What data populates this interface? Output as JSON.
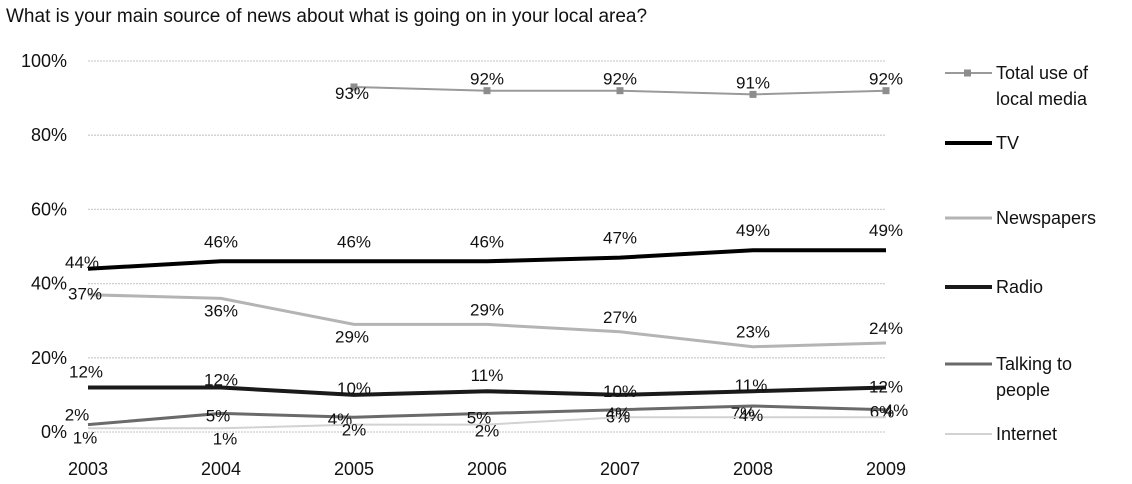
{
  "chart_data": {
    "type": "line",
    "title": "What is your main source of news about what is going on in your local area?",
    "x": [
      "2003",
      "2004",
      "2005",
      "2006",
      "2007",
      "2008",
      "2009"
    ],
    "ylim": [
      0,
      100
    ],
    "yticks": [
      "0%",
      "20%",
      "40%",
      "60%",
      "80%",
      "100%"
    ],
    "grid": true,
    "legend_position": "right",
    "series": [
      {
        "name": "Total use of local media",
        "values": [
          null,
          null,
          93,
          92,
          92,
          91,
          92
        ],
        "labels": [
          "",
          "",
          "93%",
          "92%",
          "92%",
          "91%",
          "92%"
        ],
        "color": "#9a9a9a",
        "marker": "square"
      },
      {
        "name": "TV",
        "values": [
          44,
          46,
          46,
          46,
          47,
          49,
          49
        ],
        "labels": [
          "44%",
          "46%",
          "46%",
          "46%",
          "47%",
          "49%",
          "49%"
        ],
        "color": "#000000"
      },
      {
        "name": "Newspapers",
        "values": [
          37,
          36,
          29,
          29,
          27,
          23,
          24
        ],
        "labels": [
          "37%",
          "36%",
          "29%",
          "29%",
          "27%",
          "23%",
          "24%"
        ],
        "color": "#b4b4b4"
      },
      {
        "name": "Radio",
        "values": [
          12,
          12,
          10,
          11,
          10,
          11,
          12
        ],
        "labels": [
          "12%",
          "12%",
          "10%",
          "11%",
          "10%",
          "11%",
          "12%"
        ],
        "color": "#1a1a1a"
      },
      {
        "name": "Talking to people",
        "values": [
          2,
          5,
          4,
          5,
          6,
          7,
          6
        ],
        "labels": [
          "2%",
          "5%",
          "4%",
          "5%",
          "6%",
          "7%",
          "6%"
        ],
        "color": "#6a6a6a"
      },
      {
        "name": "Internet",
        "values": [
          1,
          1,
          2,
          2,
          4,
          4,
          4
        ],
        "labels": [
          "1%",
          "1%",
          "2%",
          "2%",
          "4%",
          "4%",
          "4%"
        ],
        "color": "#d2d2d2"
      }
    ],
    "legend": [
      "Total use of local media",
      "TV",
      "Newspapers",
      "Radio",
      "Talking to people",
      "Internet"
    ]
  }
}
